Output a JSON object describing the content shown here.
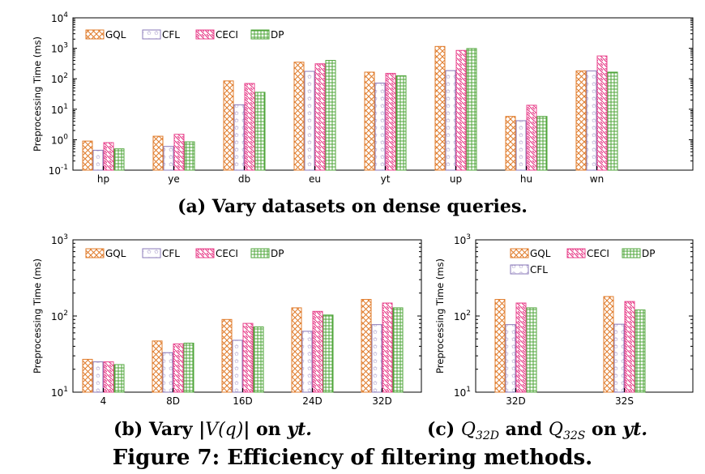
{
  "colors": {
    "GQL": "#e07b2a",
    "CFL": "#8a78b8",
    "CECI": "#e8438c",
    "DP": "#4fa53a"
  },
  "chart_data": [
    {
      "type": "bar",
      "ylabel": "Preprocessing Time (ms)",
      "yscale": "log",
      "ylim": [
        0.1,
        10000
      ],
      "yticks": [
        {
          "v": 0.1,
          "b": "10",
          "e": "-1"
        },
        {
          "v": 1,
          "b": "10",
          "e": "0"
        },
        {
          "v": 10,
          "b": "10",
          "e": "1"
        },
        {
          "v": 100,
          "b": "10",
          "e": "2"
        },
        {
          "v": 1000,
          "b": "10",
          "e": "3"
        },
        {
          "v": 10000,
          "b": "10",
          "e": "4"
        }
      ],
      "categories": [
        "hp",
        "ye",
        "db",
        "eu",
        "yt",
        "up",
        "hu",
        "wn"
      ],
      "legend": [
        "GQL",
        "CFL",
        "CECI",
        "DP"
      ],
      "series": [
        {
          "name": "GQL",
          "values": [
            0.9,
            1.3,
            85,
            350,
            165,
            1150,
            5.8,
            180
          ]
        },
        {
          "name": "CFL",
          "values": [
            0.45,
            0.6,
            14,
            175,
            72,
            185,
            4.2,
            180
          ]
        },
        {
          "name": "CECI",
          "values": [
            0.8,
            1.5,
            70,
            310,
            150,
            850,
            13.5,
            560
          ]
        },
        {
          "name": "DP",
          "values": [
            0.5,
            0.85,
            36,
            400,
            125,
            980,
            5.8,
            165
          ]
        }
      ],
      "caption": "(a) Vary datasets on dense queries."
    },
    {
      "type": "bar",
      "ylabel": "Preprocessing Time (ms)",
      "yscale": "log",
      "ylim": [
        10,
        1000
      ],
      "yticks": [
        {
          "v": 10,
          "b": "10",
          "e": "1"
        },
        {
          "v": 100,
          "b": "10",
          "e": "2"
        },
        {
          "v": 1000,
          "b": "10",
          "e": "3"
        }
      ],
      "categories": [
        "4",
        "8D",
        "16D",
        "24D",
        "32D"
      ],
      "legend": [
        "GQL",
        "CFL",
        "CECI",
        "DP"
      ],
      "series": [
        {
          "name": "GQL",
          "values": [
            27,
            47,
            90,
            128,
            165
          ]
        },
        {
          "name": "CFL",
          "values": [
            25,
            33,
            48,
            63,
            77
          ]
        },
        {
          "name": "CECI",
          "values": [
            25,
            43,
            80,
            115,
            148
          ]
        },
        {
          "name": "DP",
          "values": [
            23,
            44,
            72,
            103,
            128
          ]
        }
      ],
      "caption_pre": "(b) Vary |",
      "caption_math": "V(q)",
      "caption_post": "| on ",
      "caption_ital": "yt."
    },
    {
      "type": "bar",
      "ylabel": "Preprocessing Time (ms)",
      "yscale": "log",
      "ylim": [
        10,
        1000
      ],
      "yticks": [
        {
          "v": 10,
          "b": "10",
          "e": "1"
        },
        {
          "v": 100,
          "b": "10",
          "e": "2"
        },
        {
          "v": 1000,
          "b": "10",
          "e": "3"
        }
      ],
      "categories": [
        "32D",
        "32S"
      ],
      "legend": [
        "GQL",
        "CECI",
        "DP",
        "CFL"
      ],
      "series": [
        {
          "name": "GQL",
          "values": [
            165,
            180
          ]
        },
        {
          "name": "CFL",
          "values": [
            77,
            78
          ]
        },
        {
          "name": "CECI",
          "values": [
            148,
            155
          ]
        },
        {
          "name": "DP",
          "values": [
            128,
            120
          ]
        }
      ],
      "caption_pre": "(c) ",
      "caption_q1": "Q",
      "caption_s1": "32D",
      "caption_and": " and ",
      "caption_q2": "Q",
      "caption_s2": "32S",
      "caption_post": " on ",
      "caption_ital": "yt."
    }
  ],
  "figure_caption": "Figure 7: Efficiency of filtering methods."
}
